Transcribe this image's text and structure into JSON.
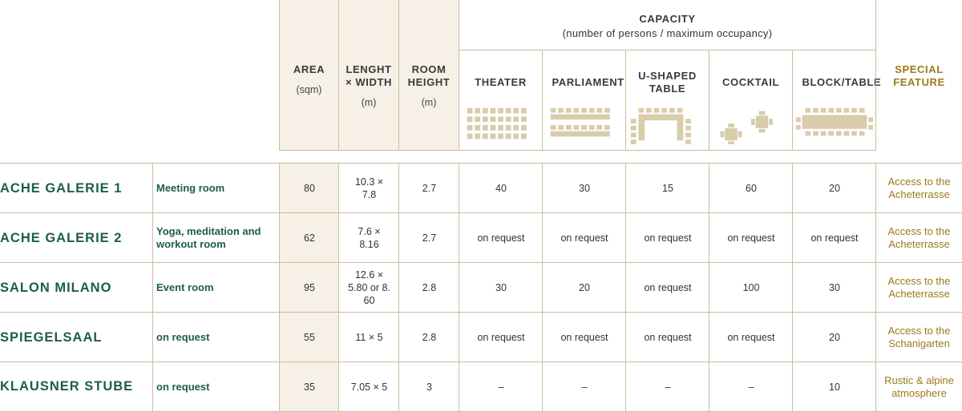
{
  "header": {
    "capacity_title": "CAPACITY",
    "capacity_subtitle": "(number of persons / maximum occupancy)",
    "columns": [
      {
        "label": "AREA",
        "unit": "(sqm)"
      },
      {
        "label": "LENGHT × WIDTH",
        "unit": "(m)"
      },
      {
        "label": "ROOM HEIGHT",
        "unit": "(m)"
      }
    ],
    "capacity_columns": [
      "THEATER",
      "PARLIAMENT",
      "U-SHAPED TABLE",
      "COCKTAIL",
      "BLOCK/TABLE"
    ],
    "special": "SPECIAL FEATURE"
  },
  "rows": [
    [
      "ACHE GALERIE 1",
      "Meeting room",
      80,
      "10.3 × 7.8",
      2.7,
      40,
      30,
      15,
      60,
      20,
      "Access to the Acheterrasse"
    ],
    [
      "ACHE GALERIE 2",
      "Yoga, meditation and workout room",
      62,
      "7.6 × 8.16",
      2.7,
      "on request",
      "on request",
      "on request",
      "on request",
      "on request",
      "Access to the Acheterrasse"
    ],
    [
      "SALON MILANO",
      "Event room",
      95,
      "12.6 × 5.80 or 8. 60",
      2.8,
      30,
      20,
      "on request",
      100,
      30,
      "Access to the Acheterrasse"
    ],
    [
      "SPIEGELSAAL",
      "on request",
      55,
      "11 × 5",
      2.8,
      "on request",
      "on request",
      "on request",
      "on request",
      20,
      "Access to the Schanigarten"
    ],
    [
      "KLAUSNER STUBE",
      "on request",
      35,
      "7.05 × 5",
      3,
      "–",
      "–",
      "–",
      "–",
      10,
      "Rustic & alpine atmosphere"
    ]
  ]
}
